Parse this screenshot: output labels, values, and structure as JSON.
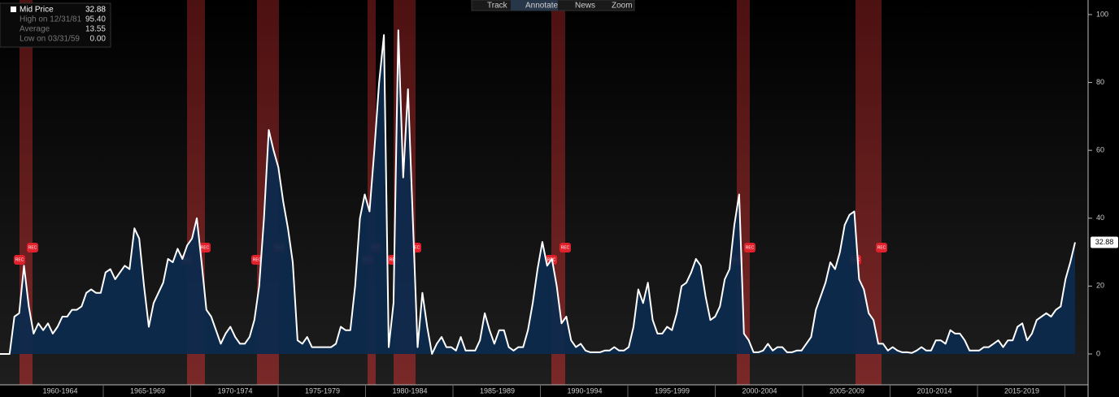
{
  "chart_data": {
    "type": "area",
    "toolbar": [
      "Track",
      "Annotate",
      "News",
      "Zoom"
    ],
    "legend": [
      {
        "name": "Mid Price",
        "value": "32.88"
      },
      {
        "name": "High on 12/31/81",
        "value": "95.40"
      },
      {
        "name": "Average",
        "value": "13.55"
      },
      {
        "name": "Low on 03/31/59",
        "value": "0.00"
      }
    ],
    "last_value_label": "32.88",
    "annotation_label": "REC",
    "x_labels": [
      "1960-1964",
      "1965-1969",
      "1970-1974",
      "1975-1979",
      "1980-1984",
      "1985-1989",
      "1990-1994",
      "1995-1999",
      "2000-2004",
      "2005-2009",
      "2010-2014",
      "2015-2019"
    ],
    "series": [
      {
        "name": "Mid Price",
        "color": "#ffffff",
        "fill": "#0c2a4d",
        "values": [
          0,
          0,
          0,
          11,
          12,
          26,
          14,
          6,
          9,
          7,
          9,
          6,
          8,
          11,
          11,
          13,
          13,
          14,
          18,
          19,
          18,
          18,
          24,
          25,
          22,
          24,
          26,
          25,
          37,
          34,
          20,
          8,
          15,
          18,
          21,
          28,
          27,
          31,
          28,
          32,
          34,
          40,
          27,
          13,
          11,
          7,
          3,
          6,
          8,
          5,
          3,
          3,
          5,
          10,
          20,
          40,
          66,
          60,
          55,
          45,
          37,
          27,
          4,
          3,
          5,
          2,
          2,
          2,
          2,
          2,
          3,
          8,
          7,
          7,
          20,
          40,
          47,
          42,
          60,
          80,
          94,
          2,
          15,
          95.4,
          52,
          78,
          40,
          2,
          18,
          8,
          0,
          3,
          5,
          2,
          2,
          1,
          5,
          1,
          1,
          1,
          4,
          12,
          7,
          3,
          7,
          7,
          2,
          1,
          2,
          2,
          7,
          15,
          25,
          33,
          26,
          28,
          20,
          9,
          11,
          4,
          2,
          3,
          1,
          0.5,
          0.5,
          0.5,
          1,
          1,
          2,
          1,
          1,
          2,
          8,
          19,
          15,
          21,
          10,
          6,
          6,
          8,
          7,
          12,
          20,
          21,
          24,
          28,
          26,
          17,
          10,
          11,
          14,
          22,
          25,
          38,
          47,
          6,
          4,
          0.5,
          0.5,
          1,
          3,
          1,
          2,
          2,
          0.5,
          0.5,
          1,
          1,
          3,
          5,
          13,
          17,
          21,
          27,
          25,
          30,
          38,
          41,
          42,
          22,
          19,
          12,
          10,
          3,
          3,
          1,
          2,
          1,
          0.5,
          0.5,
          0.3,
          1,
          2,
          1,
          1,
          4,
          4,
          3,
          7,
          6,
          6,
          4,
          1,
          1,
          1,
          2,
          2,
          3,
          4,
          2,
          4,
          4,
          8,
          9,
          4,
          6,
          10,
          11,
          12,
          11,
          13,
          14,
          22,
          27,
          32.88
        ]
      }
    ],
    "ylim": [
      -9.1,
      104.3
    ],
    "yticks": [
      0,
      20,
      40,
      60,
      80,
      100
    ]
  }
}
